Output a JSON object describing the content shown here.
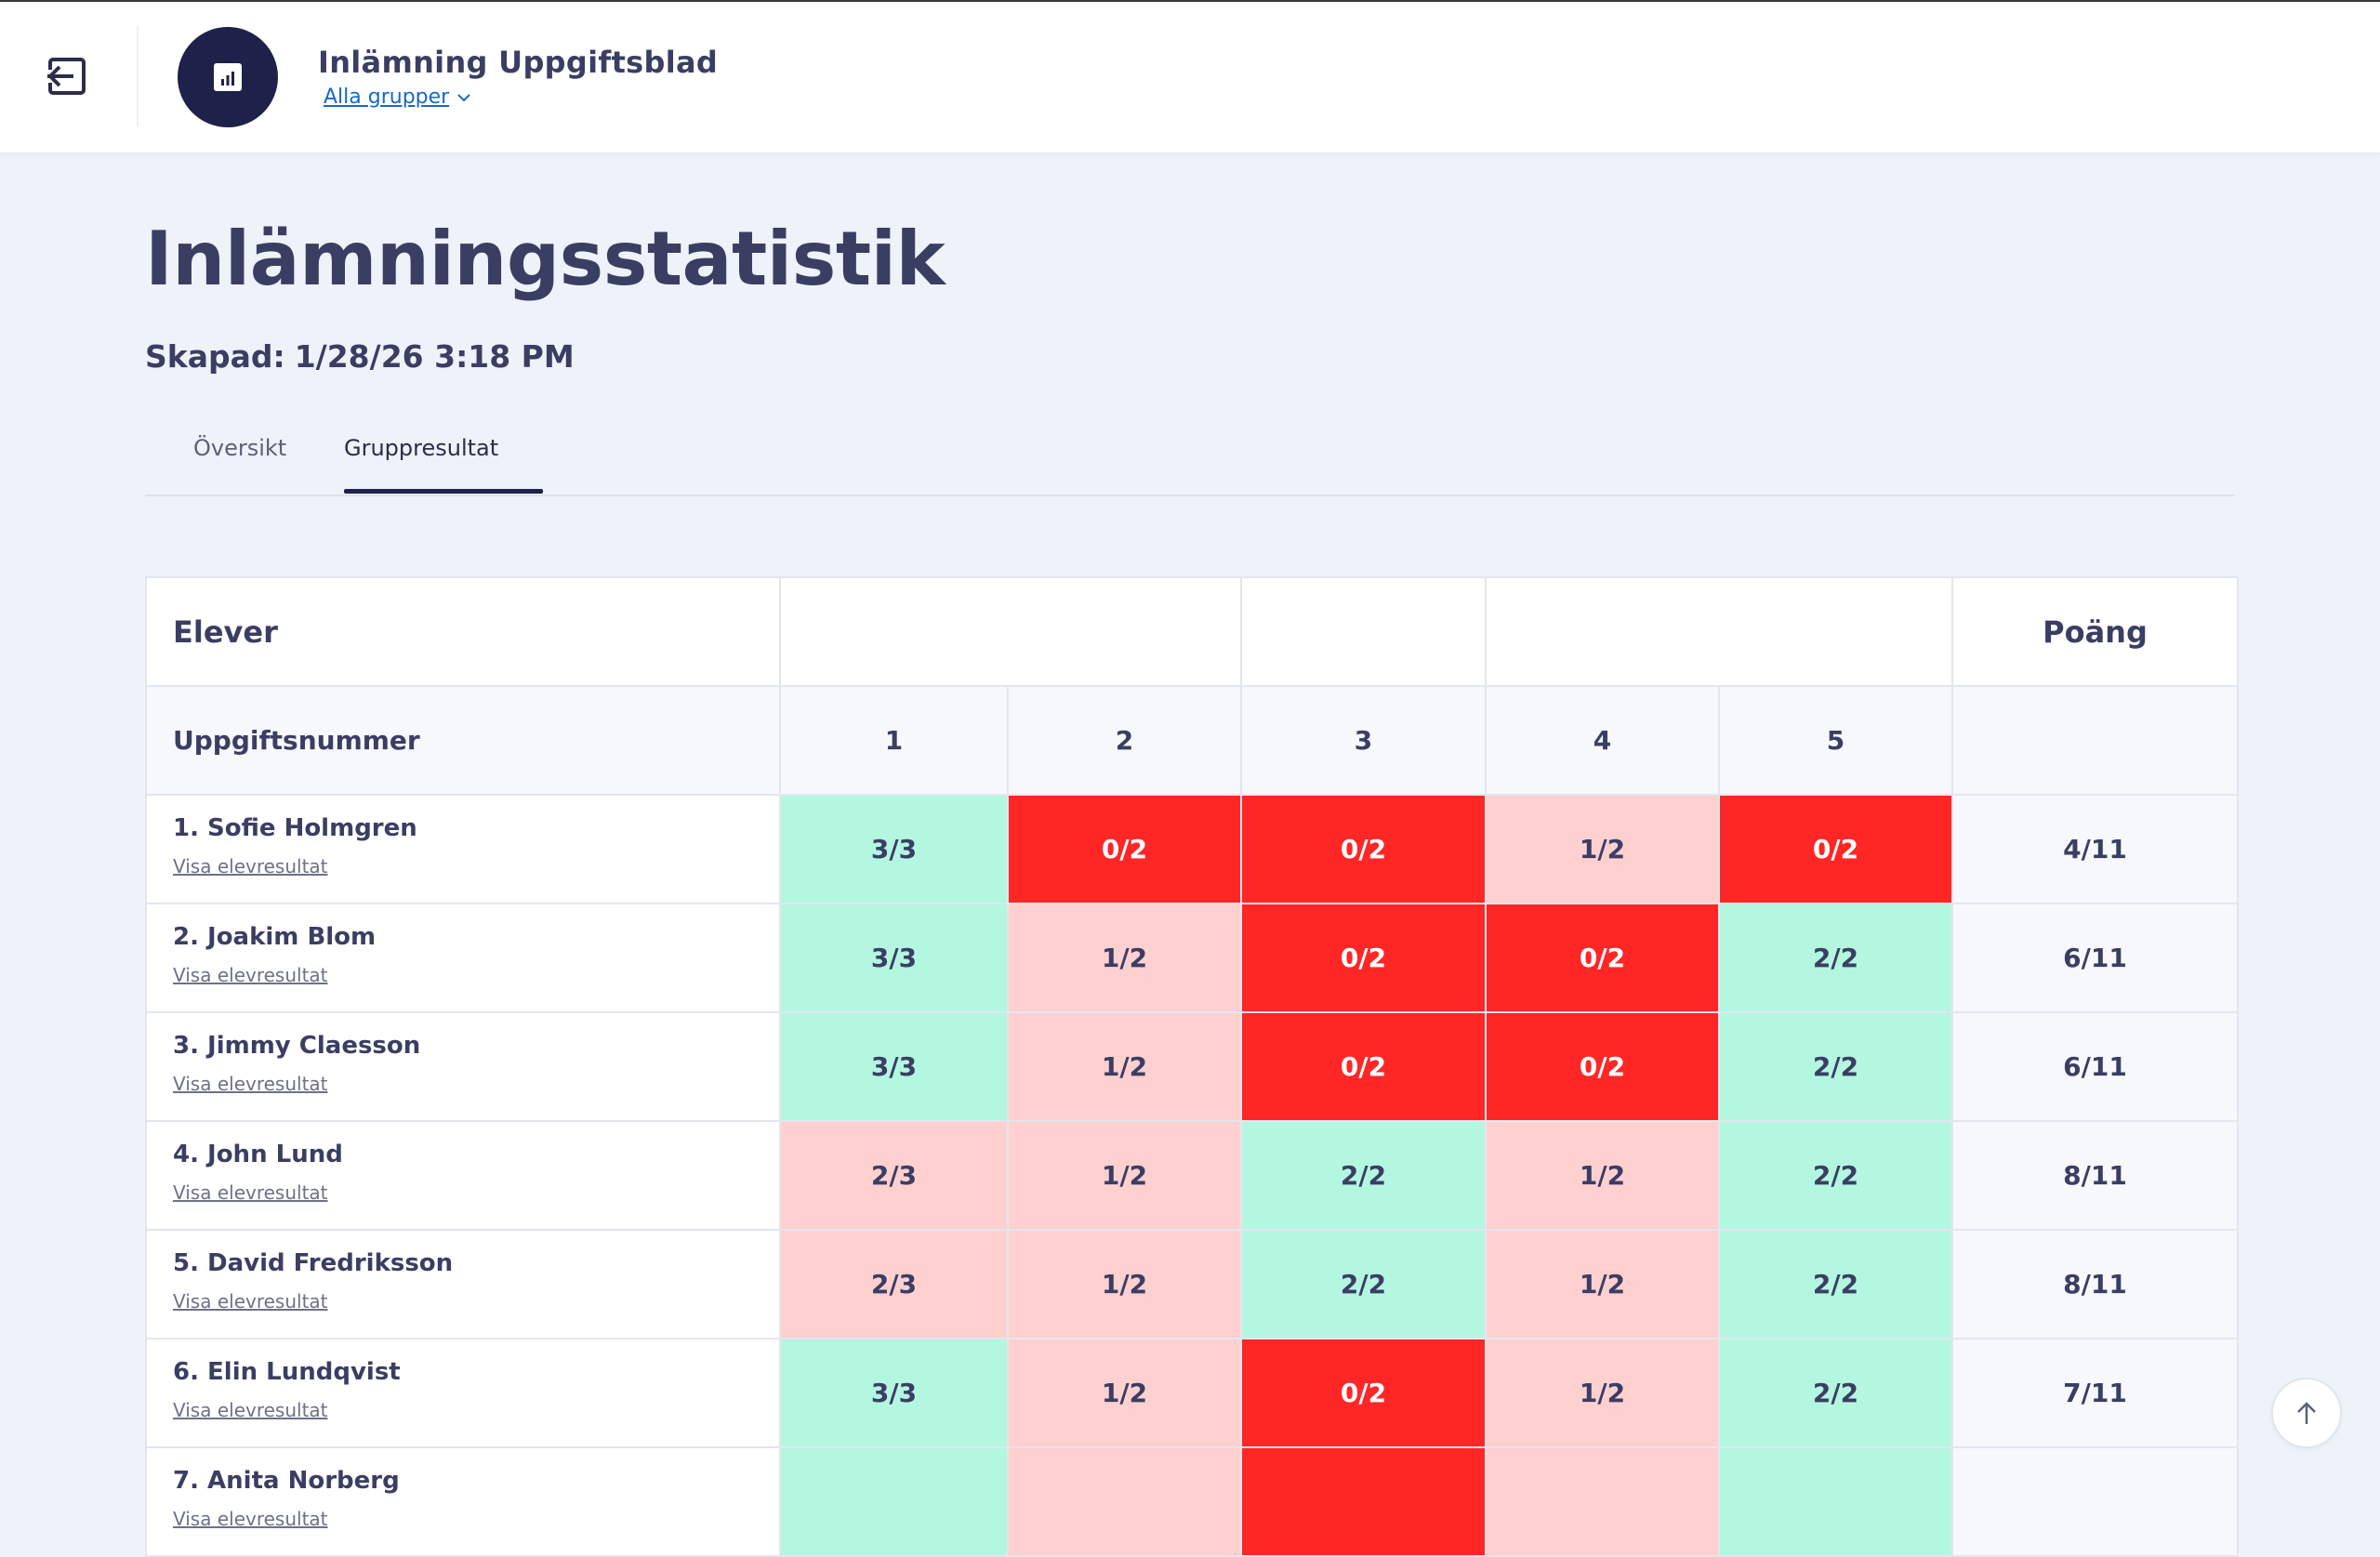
{
  "header": {
    "title": "Inlämning Uppgiftsblad",
    "group_select": "Alla grupper"
  },
  "page": {
    "heading": "Inlämningsstatistik",
    "created_label": "Skapad:",
    "created_value": "1/28/26 3:18 PM"
  },
  "tabs": [
    {
      "label": "Översikt",
      "active": false
    },
    {
      "label": "Gruppresultat",
      "active": true
    }
  ],
  "table": {
    "students_header": "Elever",
    "points_header": "Poäng",
    "task_row_label": "Uppgiftsnummer",
    "tasks": [
      "1",
      "2",
      "3",
      "4",
      "5"
    ],
    "view_link_label": "Visa elevresultat",
    "students": [
      {
        "name": "1. Sofie Holmgren",
        "scores": [
          "3/3",
          "0/2",
          "0/2",
          "1/2",
          "0/2"
        ],
        "status": [
          "full",
          "zero",
          "zero",
          "partial",
          "zero"
        ],
        "total": "4/11"
      },
      {
        "name": "2. Joakim Blom",
        "scores": [
          "3/3",
          "1/2",
          "0/2",
          "0/2",
          "2/2"
        ],
        "status": [
          "full",
          "partial",
          "zero",
          "zero",
          "full"
        ],
        "total": "6/11"
      },
      {
        "name": "3. Jimmy Claesson",
        "scores": [
          "3/3",
          "1/2",
          "0/2",
          "0/2",
          "2/2"
        ],
        "status": [
          "full",
          "partial",
          "zero",
          "zero",
          "full"
        ],
        "total": "6/11"
      },
      {
        "name": "4. John Lund",
        "scores": [
          "2/3",
          "1/2",
          "2/2",
          "1/2",
          "2/2"
        ],
        "status": [
          "partial",
          "partial",
          "full",
          "partial",
          "full"
        ],
        "total": "8/11"
      },
      {
        "name": "5. David Fredriksson",
        "scores": [
          "2/3",
          "1/2",
          "2/2",
          "1/2",
          "2/2"
        ],
        "status": [
          "partial",
          "partial",
          "full",
          "partial",
          "full"
        ],
        "total": "8/11"
      },
      {
        "name": "6. Elin Lundqvist",
        "scores": [
          "3/3",
          "1/2",
          "0/2",
          "1/2",
          "2/2"
        ],
        "status": [
          "full",
          "partial",
          "zero",
          "partial",
          "full"
        ],
        "total": "7/11"
      },
      {
        "name": "7. Anita Norberg",
        "scores": [
          "",
          "",
          "",
          "",
          ""
        ],
        "status": [
          "full",
          "partial",
          "zero",
          "partial",
          "full"
        ],
        "total": ""
      }
    ]
  },
  "colors": {
    "full": "#b3f7e1",
    "partial": "#ffd0d0",
    "zero": "#ff2626",
    "navy": "#1e2149",
    "link": "#1769c8"
  },
  "icons": {
    "back": "exit-arrow-icon",
    "app": "bar-chart-icon",
    "chevron": "chevron-down-icon",
    "scroll_top": "arrow-up-icon"
  }
}
